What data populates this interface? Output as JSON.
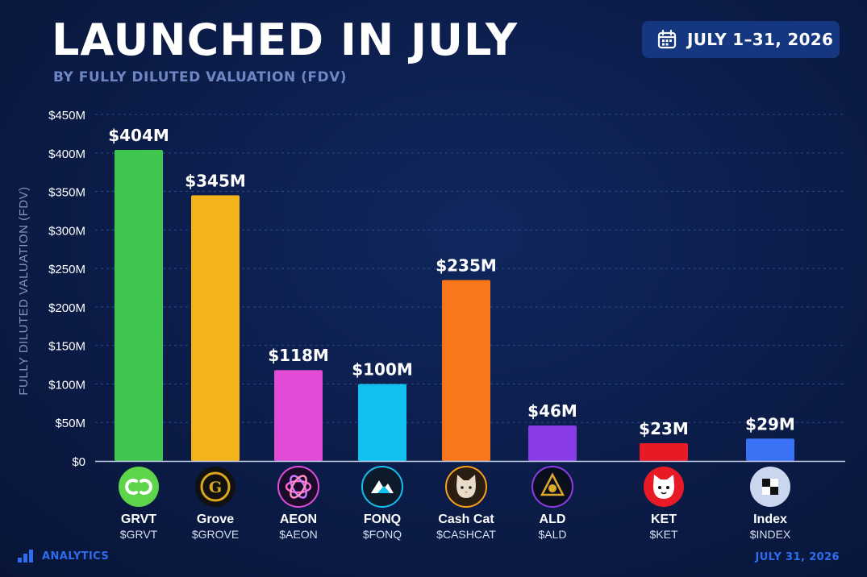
{
  "header": {
    "title": "LAUNCHED IN JULY",
    "subtitle": "BY FULLY DILUTED VALUATION (FDV)",
    "date_range": "JULY 1–31, 2026"
  },
  "footer": {
    "brand": "ANALYTICS",
    "date": "JULY 31, 2026"
  },
  "colors": {
    "background": "#0b1c48",
    "accent": "#2f6df0",
    "gridline": "#2a4a8c",
    "tick_label": "#ffffff",
    "axis_label": "#8294c2"
  },
  "chart_data": {
    "type": "bar",
    "ylabel": "FULLY DILUTED VALUATION (FDV)",
    "ylim": [
      0,
      450
    ],
    "yticks": [
      0,
      50,
      100,
      150,
      200,
      250,
      300,
      350,
      400,
      450
    ],
    "ytick_labels": [
      "$0",
      "$50M",
      "$100M",
      "$150M",
      "$200M",
      "$250M",
      "$300M",
      "$350M",
      "$400M",
      "$450M"
    ],
    "grid": true,
    "categories": [
      "GRVT",
      "Grove",
      "AEON",
      "FONQ",
      "Cash Cat",
      "ALD",
      "KET",
      "Index"
    ],
    "tickers": [
      "$GRVT",
      "$GROVE",
      "$AEON",
      "$FONQ",
      "$CASHCAT",
      "$ALD",
      "$KET",
      "$INDEX"
    ],
    "values": [
      404,
      345,
      118,
      100,
      235,
      46,
      23,
      29
    ],
    "value_labels": [
      "$404M",
      "$345M",
      "$118M",
      "$100M",
      "$235M",
      "$46M",
      "$23M",
      "$29M"
    ],
    "bar_colors": [
      "#3fc64f",
      "#f5b31a",
      "#e14bd6",
      "#12c0ef",
      "#f9771a",
      "#8a3be8",
      "#e81a26",
      "#3a72f5"
    ],
    "icons": [
      "grvt-logo-icon",
      "grove-logo-icon",
      "aeon-logo-icon",
      "fonq-logo-icon",
      "cash-cat-logo-icon",
      "ald-logo-icon",
      "ket-logo-icon",
      "index-logo-icon"
    ]
  }
}
